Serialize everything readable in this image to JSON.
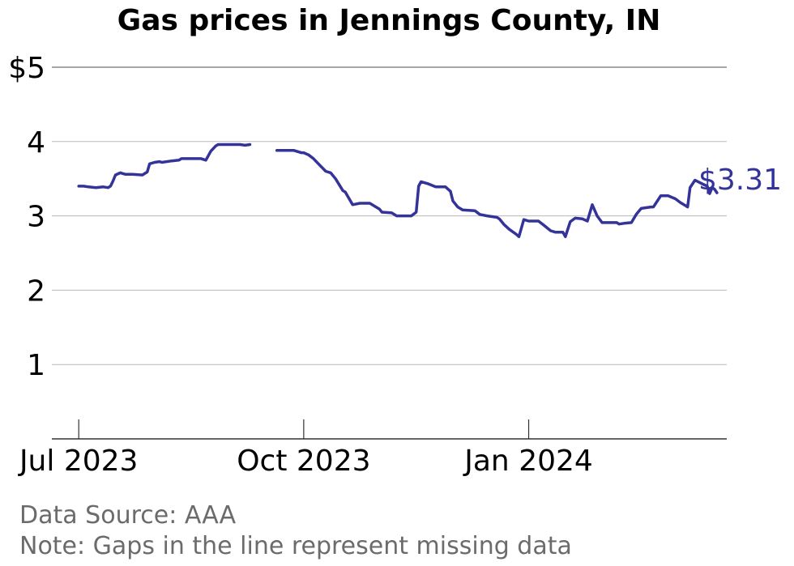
{
  "chart_data": {
    "type": "line",
    "title": "Gas prices in Jennings County, IN",
    "xlabel": "",
    "ylabel": "",
    "y_ticks": [
      1,
      2,
      3,
      4,
      5
    ],
    "y_tick_labels": [
      "1",
      "2",
      "3",
      "4",
      "$5"
    ],
    "ylim": [
      0,
      5
    ],
    "xlim": [
      "2023-06-20",
      "2024-03-22"
    ],
    "x_ticks": [
      {
        "date": "2023-07-01",
        "label": "Jul 2023"
      },
      {
        "date": "2023-10-01",
        "label": "Oct 2023"
      },
      {
        "date": "2024-01-01",
        "label": "Jan 2024"
      }
    ],
    "grid": true,
    "line_color": "#33339a",
    "end_label": "$3.31",
    "series": [
      {
        "segments": [
          [
            [
              "2023-07-01",
              3.4
            ],
            [
              "2023-07-03",
              3.4
            ],
            [
              "2023-07-05",
              3.39
            ],
            [
              "2023-07-08",
              3.38
            ],
            [
              "2023-07-11",
              3.39
            ],
            [
              "2023-07-13",
              3.38
            ],
            [
              "2023-07-14",
              3.4
            ],
            [
              "2023-07-15",
              3.47
            ],
            [
              "2023-07-16",
              3.55
            ],
            [
              "2023-07-18",
              3.58
            ],
            [
              "2023-07-20",
              3.56
            ],
            [
              "2023-07-23",
              3.56
            ],
            [
              "2023-07-27",
              3.55
            ],
            [
              "2023-07-29",
              3.59
            ],
            [
              "2023-07-30",
              3.7
            ],
            [
              "2023-08-01",
              3.72
            ],
            [
              "2023-08-03",
              3.73
            ],
            [
              "2023-08-04",
              3.72
            ],
            [
              "2023-08-08",
              3.74
            ],
            [
              "2023-08-11",
              3.75
            ],
            [
              "2023-08-12",
              3.77
            ],
            [
              "2023-08-20",
              3.77
            ],
            [
              "2023-08-22",
              3.75
            ],
            [
              "2023-08-24",
              3.87
            ],
            [
              "2023-08-26",
              3.94
            ],
            [
              "2023-08-27",
              3.96
            ],
            [
              "2023-09-05",
              3.96
            ],
            [
              "2023-09-07",
              3.95
            ],
            [
              "2023-09-09",
              3.96
            ]
          ],
          [
            [
              "2023-09-20",
              3.88
            ],
            [
              "2023-09-27",
              3.88
            ],
            [
              "2023-09-30",
              3.85
            ],
            [
              "2023-10-01",
              3.85
            ],
            [
              "2023-10-03",
              3.82
            ],
            [
              "2023-10-05",
              3.77
            ],
            [
              "2023-10-07",
              3.7
            ],
            [
              "2023-10-10",
              3.6
            ],
            [
              "2023-10-12",
              3.58
            ],
            [
              "2023-10-14",
              3.5
            ],
            [
              "2023-10-17",
              3.34
            ],
            [
              "2023-10-18",
              3.32
            ],
            [
              "2023-10-21",
              3.15
            ],
            [
              "2023-10-24",
              3.17
            ],
            [
              "2023-10-28",
              3.17
            ],
            [
              "2023-11-01",
              3.09
            ],
            [
              "2023-11-02",
              3.05
            ],
            [
              "2023-11-06",
              3.04
            ],
            [
              "2023-11-08",
              3.0
            ],
            [
              "2023-11-14",
              3.0
            ],
            [
              "2023-11-16",
              3.05
            ],
            [
              "2023-11-17",
              3.4
            ],
            [
              "2023-11-18",
              3.46
            ],
            [
              "2023-11-21",
              3.43
            ],
            [
              "2023-11-24",
              3.39
            ],
            [
              "2023-11-28",
              3.39
            ],
            [
              "2023-11-30",
              3.33
            ],
            [
              "2023-12-01",
              3.2
            ],
            [
              "2023-12-03",
              3.12
            ],
            [
              "2023-12-05",
              3.08
            ],
            [
              "2023-12-10",
              3.07
            ],
            [
              "2023-12-12",
              3.02
            ],
            [
              "2023-12-15",
              3.0
            ],
            [
              "2023-12-19",
              2.98
            ],
            [
              "2023-12-20",
              2.96
            ],
            [
              "2023-12-22",
              2.88
            ],
            [
              "2023-12-24",
              2.82
            ],
            [
              "2023-12-27",
              2.75
            ],
            [
              "2023-12-28",
              2.72
            ],
            [
              "2023-12-30",
              2.95
            ],
            [
              "2024-01-01",
              2.93
            ],
            [
              "2024-01-05",
              2.93
            ],
            [
              "2024-01-07",
              2.88
            ],
            [
              "2024-01-10",
              2.8
            ],
            [
              "2024-01-12",
              2.78
            ],
            [
              "2024-01-15",
              2.78
            ],
            [
              "2024-01-16",
              2.72
            ],
            [
              "2024-01-18",
              2.92
            ],
            [
              "2024-01-20",
              2.97
            ],
            [
              "2024-01-23",
              2.96
            ],
            [
              "2024-01-25",
              2.93
            ],
            [
              "2024-01-27",
              3.15
            ],
            [
              "2024-01-29",
              3.0
            ],
            [
              "2024-01-31",
              2.91
            ],
            [
              "2024-02-06",
              2.91
            ],
            [
              "2024-02-07",
              2.89
            ],
            [
              "2024-02-09",
              2.9
            ],
            [
              "2024-02-12",
              2.91
            ],
            [
              "2024-02-14",
              3.02
            ],
            [
              "2024-02-16",
              3.1
            ],
            [
              "2024-02-20",
              3.12
            ],
            [
              "2024-02-21",
              3.12
            ],
            [
              "2024-02-24",
              3.27
            ],
            [
              "2024-02-27",
              3.27
            ],
            [
              "2024-03-01",
              3.23
            ],
            [
              "2024-03-03",
              3.18
            ],
            [
              "2024-03-05",
              3.14
            ],
            [
              "2024-03-06",
              3.12
            ],
            [
              "2024-03-07",
              3.38
            ],
            [
              "2024-03-09",
              3.48
            ],
            [
              "2024-03-12",
              3.43
            ],
            [
              "2024-03-14",
              3.4
            ],
            [
              "2024-03-15",
              3.3
            ],
            [
              "2024-03-16",
              3.38
            ],
            [
              "2024-03-17",
              3.36
            ],
            [
              "2024-03-18",
              3.31
            ]
          ]
        ]
      }
    ]
  },
  "footer": {
    "source": "Data Source: AAA",
    "note": "Note: Gaps in the line represent missing data"
  }
}
